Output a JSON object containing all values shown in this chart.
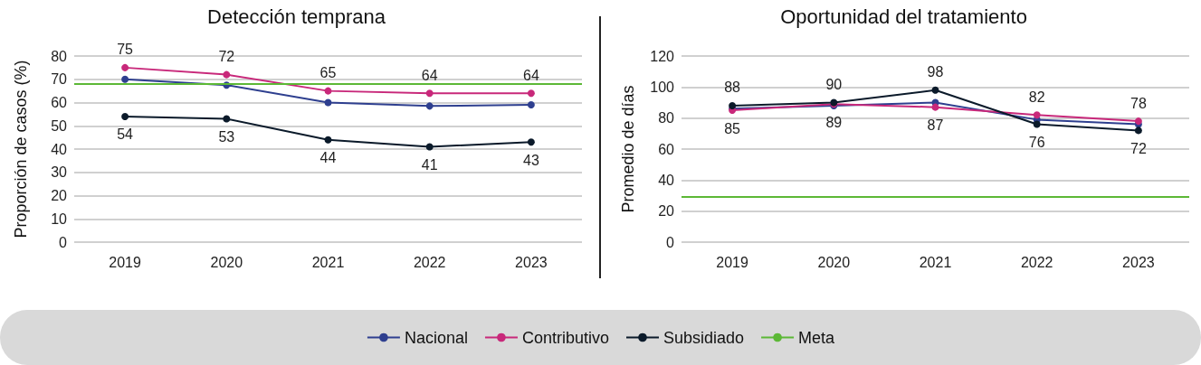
{
  "chart_data": [
    {
      "type": "line",
      "title": "Detección temprana",
      "ylabel": "Proporción de casos (%)",
      "categories": [
        "2019",
        "2020",
        "2021",
        "2022",
        "2023"
      ],
      "ylim": [
        0,
        80
      ],
      "yticks": [
        0,
        10,
        20,
        30,
        40,
        50,
        60,
        70,
        80
      ],
      "grid": "y",
      "marker": "circle",
      "legend": "bottom",
      "series": [
        {
          "name": "Nacional",
          "color": "#2e3f8f",
          "values": [
            70,
            67.5,
            60,
            58.5,
            59
          ]
        },
        {
          "name": "Contributivo",
          "color": "#c8287a",
          "values": [
            75,
            72,
            65,
            64,
            64
          ],
          "value_labels": [
            "75",
            "72",
            "65",
            "64",
            "64"
          ]
        },
        {
          "name": "Subsidiado",
          "color": "#0b1a2a",
          "values": [
            54,
            53,
            44,
            41,
            43
          ],
          "value_labels": [
            "54",
            "53",
            "44",
            "41",
            "43"
          ]
        }
      ],
      "ref_lines": [
        {
          "axis": "y",
          "value": 68,
          "label": "Meta",
          "color": "#5cb836"
        }
      ]
    },
    {
      "type": "line",
      "title": "Oportunidad del tratamiento",
      "ylabel": "Promedio de días",
      "categories": [
        "2019",
        "2020",
        "2021",
        "2022",
        "2023"
      ],
      "ylim": [
        0,
        120
      ],
      "yticks": [
        0,
        20,
        40,
        60,
        80,
        100,
        120
      ],
      "grid": "y",
      "marker": "circle",
      "legend": "bottom",
      "series": [
        {
          "name": "Nacional",
          "color": "#2e3f8f",
          "values": [
            86,
            88,
            90,
            79,
            76
          ]
        },
        {
          "name": "Contributivo",
          "color": "#c8287a",
          "values": [
            85,
            89,
            87,
            82,
            78
          ],
          "value_labels": [
            "85",
            "89",
            "87",
            "82",
            "78"
          ]
        },
        {
          "name": "Subsidiado",
          "color": "#0b1a2a",
          "values": [
            88,
            90,
            98,
            76,
            72
          ],
          "value_labels": [
            "88",
            "90",
            "98",
            "76",
            "72"
          ]
        }
      ],
      "ref_lines": [
        {
          "axis": "y",
          "value": 29,
          "color": "#5cb836"
        }
      ]
    }
  ]
}
